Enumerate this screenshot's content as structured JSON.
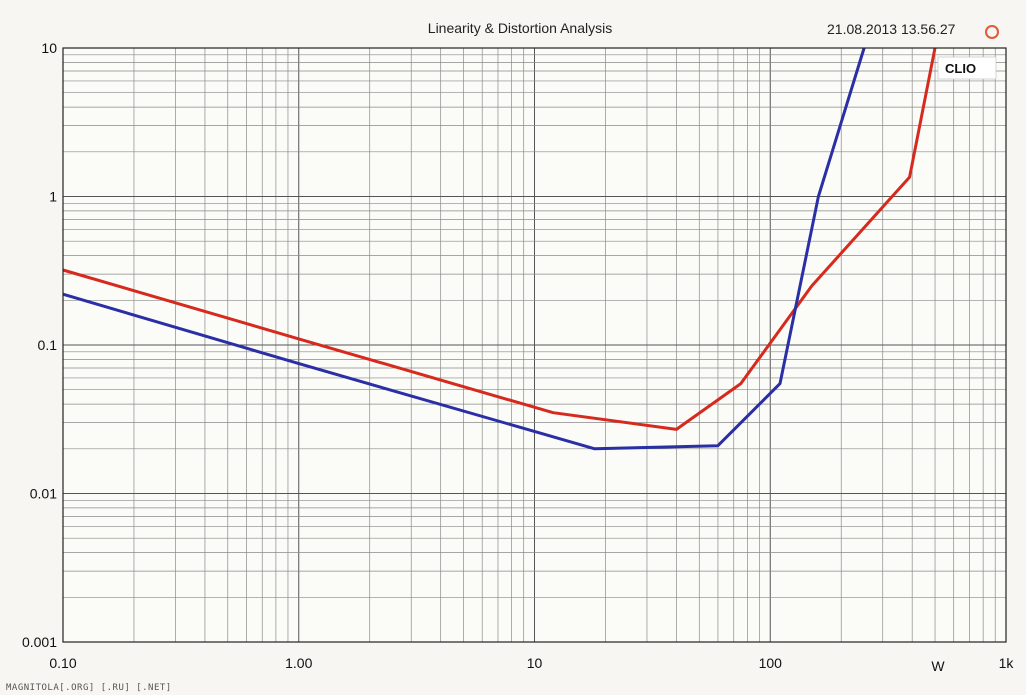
{
  "chart_data": {
    "type": "line",
    "title": "Linearity & Distortion Analysis",
    "timestamp": "21.08.2013 13.56.27",
    "brand": "CLIO",
    "xlabel": "W",
    "ylabel": "",
    "xscale": "log",
    "yscale": "log",
    "xlim": [
      0.1,
      1000
    ],
    "ylim": [
      0.001,
      10
    ],
    "grid": true,
    "x_ticks": [
      {
        "value": 0.1,
        "label": "0.10"
      },
      {
        "value": 1,
        "label": "1.00"
      },
      {
        "value": 10,
        "label": "10"
      },
      {
        "value": 100,
        "label": "100"
      },
      {
        "value": 1000,
        "label": "1k"
      }
    ],
    "y_ticks": [
      {
        "value": 10,
        "label": "10"
      },
      {
        "value": 1,
        "label": "1"
      },
      {
        "value": 0.1,
        "label": "0.1"
      },
      {
        "value": 0.01,
        "label": "0.01"
      },
      {
        "value": 0.001,
        "label": "0.001"
      }
    ],
    "series": [
      {
        "color": "#d62a1e",
        "points": [
          [
            0.1,
            0.32
          ],
          [
            1,
            0.11
          ],
          [
            12,
            0.035
          ],
          [
            40,
            0.027
          ],
          [
            75,
            0.055
          ],
          [
            150,
            0.25
          ],
          [
            390,
            1.35
          ],
          [
            500,
            10
          ]
        ]
      },
      {
        "color": "#2a2fa6",
        "points": [
          [
            0.1,
            0.22
          ],
          [
            1,
            0.075
          ],
          [
            18,
            0.02
          ],
          [
            60,
            0.021
          ],
          [
            110,
            0.055
          ],
          [
            160,
            1.0
          ],
          [
            250,
            10
          ]
        ]
      }
    ]
  },
  "footer": {
    "watermark": "MAGNITOLA[.ORG] [.RU] [.NET]"
  }
}
